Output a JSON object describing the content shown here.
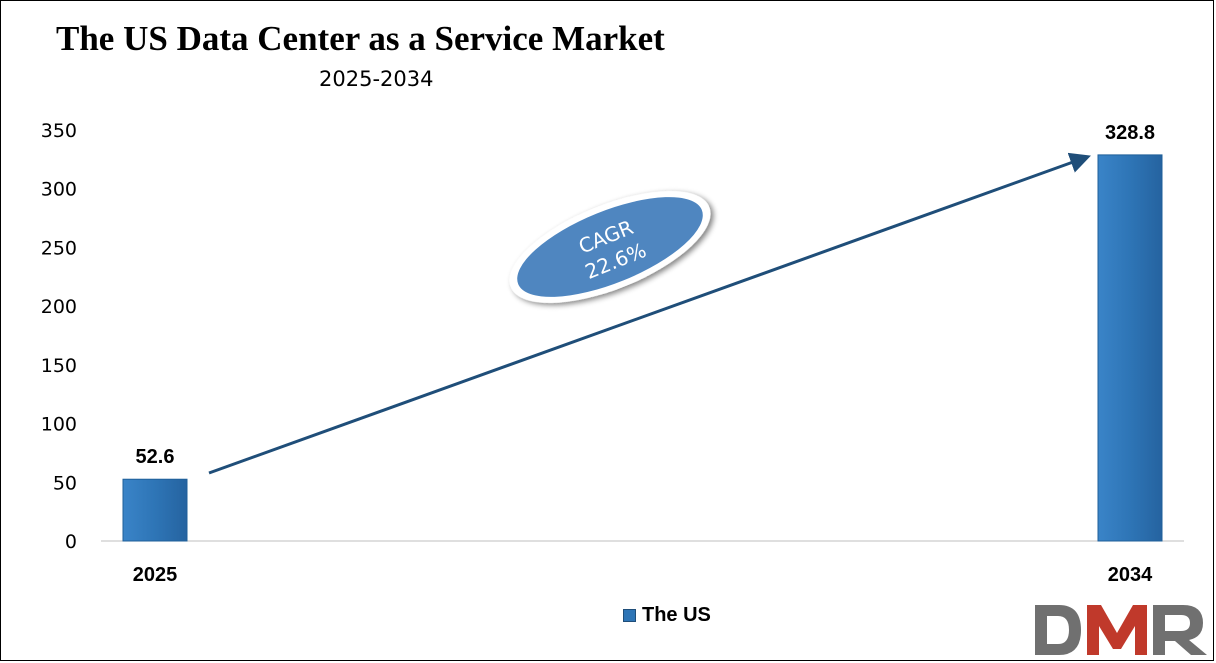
{
  "chart_data": {
    "type": "bar",
    "title": "The US Data Center as a Service Market",
    "subtitle": "2025-2034",
    "categories": [
      "2025",
      "2034"
    ],
    "series": [
      {
        "name": "The US",
        "values": [
          52.6,
          328.8
        ],
        "labels": [
          "52.6",
          "328.8"
        ]
      }
    ],
    "ylim": [
      0,
      350
    ],
    "yticks": [
      "0",
      "50",
      "100",
      "150",
      "200",
      "250",
      "300",
      "350"
    ],
    "ytick_values": [
      0,
      50,
      100,
      150,
      200,
      250,
      300,
      350
    ],
    "grid": false,
    "legend_position": "bottom",
    "annotation": {
      "line1": "CAGR",
      "line2": "22.6%"
    }
  },
  "colors": {
    "bar": "#2e75b6",
    "bar_dark": "#1f5f99",
    "arrow": "#1f4e79",
    "ellipse": "#4f86c0",
    "logo_gray": "#707070",
    "logo_red": "#c0392b"
  },
  "logo": {
    "text": "DMR"
  }
}
